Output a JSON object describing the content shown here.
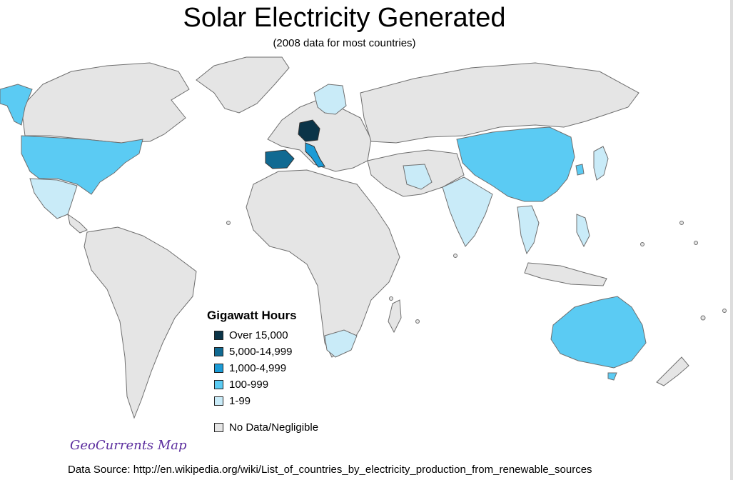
{
  "title": "Solar Electricity Generated",
  "subtitle": "(2008 data for most countries)",
  "legend": {
    "title": "Gigawatt Hours",
    "items": [
      {
        "label": "Over 15,000",
        "color": "#0b3448"
      },
      {
        "label": "5,000-14,999",
        "color": "#116a92"
      },
      {
        "label": "1,000-4,999",
        "color": "#1b9bd6"
      },
      {
        "label": "100-999",
        "color": "#5bcbf3"
      },
      {
        "label": "1-99",
        "color": "#c9ebf8"
      }
    ],
    "no_data": {
      "label": "No Data/Negligible",
      "color": "#e5e5e5"
    }
  },
  "credit": "GeoCurrents Map",
  "source": "Data Source: http://en.wikipedia.org/wiki/List_of_countries_by_electricity_production_from_renewable_sources"
}
